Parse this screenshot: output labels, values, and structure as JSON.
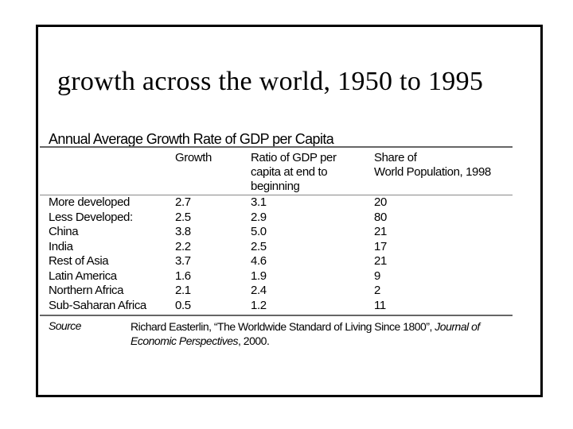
{
  "title": "growth across the world, 1950 to 1995",
  "table": {
    "caption": "Annual Average Growth Rate of GDP per Capita",
    "headers": {
      "growth": "Growth",
      "ratio": [
        "Ratio of GDP per",
        "capita at end to",
        "beginning"
      ],
      "share": [
        "Share of",
        "World Population, 1998"
      ]
    },
    "rows": [
      {
        "region": "More developed",
        "growth": "2.7",
        "ratio": "3.1",
        "share": "20"
      },
      {
        "region": "Less Developed:",
        "growth": "2.5",
        "ratio": "2.9",
        "share": "80"
      },
      {
        "region": "China",
        "growth": "3.8",
        "ratio": "5.0",
        "share": "21"
      },
      {
        "region": "India",
        "growth": "2.2",
        "ratio": "2.5",
        "share": "17"
      },
      {
        "region": "Rest of Asia",
        "growth": "3.7",
        "ratio": "4.6",
        "share": "21"
      },
      {
        "region": "Latin America",
        "growth": "1.6",
        "ratio": "1.9",
        "share": "9"
      },
      {
        "region": "Northern Africa",
        "growth": "2.1",
        "ratio": "2.4",
        "share": "2"
      },
      {
        "region": "Sub-Saharan Africa",
        "growth": "0.5",
        "ratio": "1.2",
        "share": "11"
      }
    ],
    "source": {
      "label": "Source",
      "text_part1": "Richard Easterlin, “The Worldwide Standard of Living Since 1800”, ",
      "journal": "Journal of Economic Perspectives",
      "text_part2": ", 2000."
    }
  }
}
